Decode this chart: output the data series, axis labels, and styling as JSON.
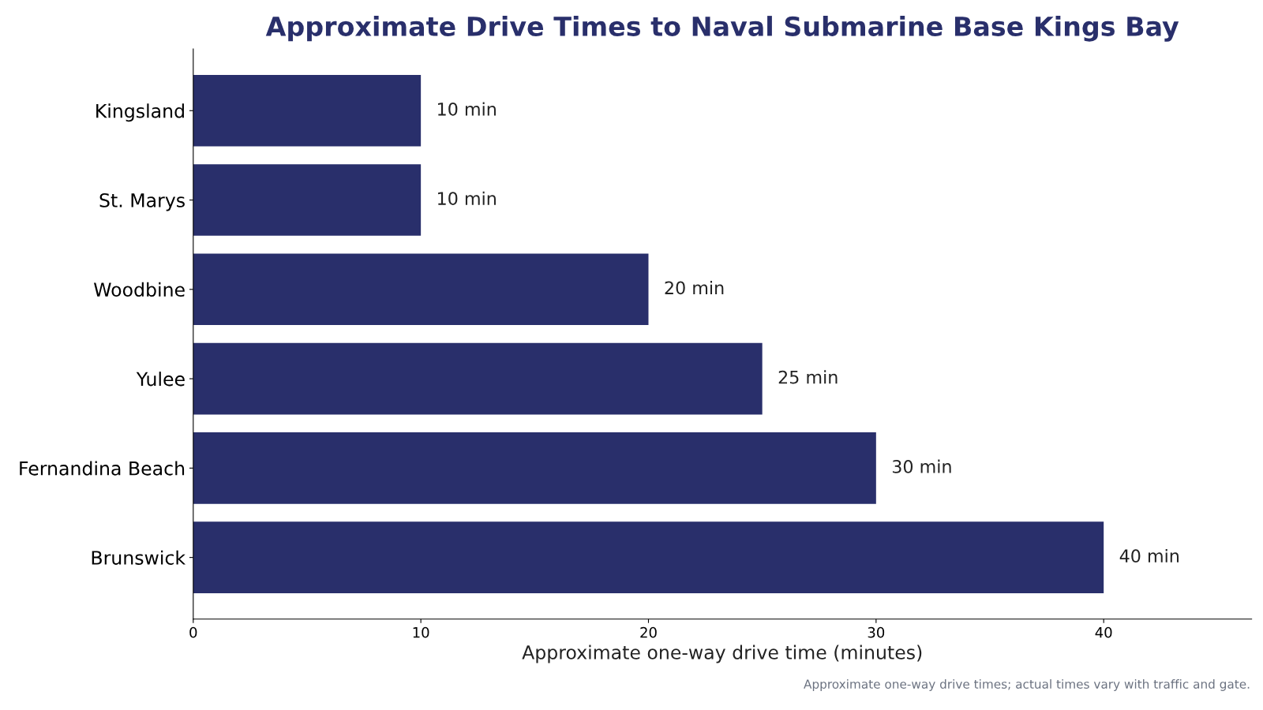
{
  "chart_data": {
    "type": "bar",
    "orientation": "horizontal",
    "title": "Approximate Drive Times to Naval Submarine Base Kings Bay",
    "xlabel": "Approximate one-way drive time (minutes)",
    "categories": [
      "Kingsland",
      "St. Marys",
      "Woodbine",
      "Yulee",
      "Fernandina Beach",
      "Brunswick"
    ],
    "values": [
      10,
      10,
      20,
      25,
      30,
      40
    ],
    "value_labels": [
      "10 min",
      "10 min",
      "20 min",
      "25 min",
      "30 min",
      "40 min"
    ],
    "color": "#292f6b",
    "xlim": [
      0,
      46.5
    ],
    "xticks": [
      0,
      10,
      20,
      30,
      40
    ],
    "grid": false,
    "legend": false,
    "annotations": [
      "Approximate one-way drive times; actual times vary with traffic and gate."
    ]
  }
}
